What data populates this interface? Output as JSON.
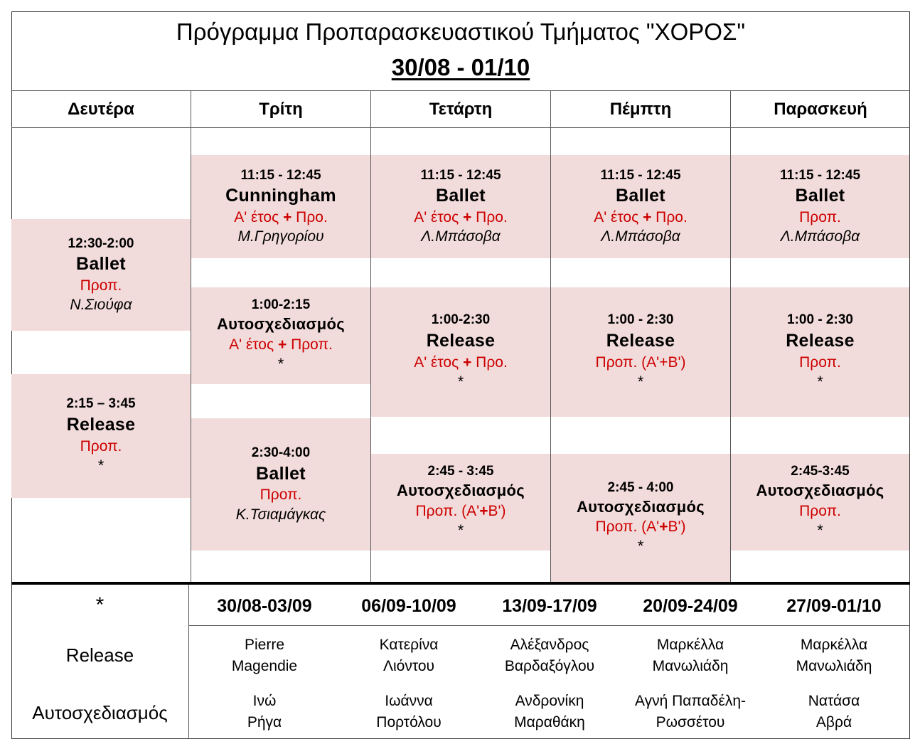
{
  "title": {
    "line1": "Πρόγραμμα Προπαρασκευαστικού Τμήματος \"ΧΟΡΟΣ\"",
    "line2": "30/08 - 01/10"
  },
  "days": [
    "Δευτέρα",
    "Τρίτη",
    "Τετάρτη",
    "Πέμπτη",
    "Παρασκευή"
  ],
  "schedule": {
    "mon": [
      {
        "time": "12:30-2:00",
        "course": "Ballet",
        "level": "Προπ.",
        "teacher": "Ν.Σιούφα"
      },
      {
        "time": "2:15 – 3:45",
        "course": "Release",
        "level": "Προπ.",
        "star": "*"
      }
    ],
    "tue": [
      {
        "time": "11:15 - 12:45",
        "course": "Cunningham",
        "level_a": "Α' έτος",
        "plus": "+",
        "level_b": "Προ.",
        "teacher": "Μ.Γρηγορίου"
      },
      {
        "time": "1:00-2:15",
        "course": "Αυτοσχεδιασμός",
        "level_a": "Α' έτος",
        "plus": "+",
        "level_b": "Προπ.",
        "star": "*"
      },
      {
        "time": "2:30-4:00",
        "course": "Ballet",
        "level": "Προπ.",
        "teacher": "Κ.Τσιαμάγκας"
      }
    ],
    "wed": [
      {
        "time": "11:15 - 12:45",
        "course": "Ballet",
        "level_a": "Α' έτος",
        "plus": "+",
        "level_b": "Προ.",
        "teacher": "Λ.Μπάσοβα"
      },
      {
        "time": "1:00-2:30",
        "course": "Release",
        "level_a": "Α' έτος",
        "plus": "+",
        "level_b": "Προ.",
        "star": "*"
      },
      {
        "time": "2:45 - 3:45",
        "course": "Αυτοσχεδιασμός",
        "level_a": "Προπ. (Α'",
        "plus": "+",
        "level_b": "Β')",
        "star": "*"
      }
    ],
    "thu": [
      {
        "time": "11:15 - 12:45",
        "course": "Ballet",
        "level_a": "Α' έτος",
        "plus": "+",
        "level_b": "Προ.",
        "teacher": "Λ.Μπάσοβα"
      },
      {
        "time": "1:00 - 2:30",
        "course": "Release",
        "level": "Προπ. (Α'+Β')",
        "star": "*"
      },
      {
        "time": "2:45 - 4:00",
        "course": "Αυτοσχεδιασμός",
        "level_a": "Προπ. (Α'",
        "plus": "+",
        "level_b": "Β')",
        "star": "*"
      }
    ],
    "fri": [
      {
        "time": "11:15 - 12:45",
        "course": "Ballet",
        "level": "Προπ.",
        "teacher": "Λ.Μπάσοβα"
      },
      {
        "time": "1:00 - 2:30",
        "course": "Release",
        "level": "Προπ.",
        "star": "*"
      },
      {
        "time": "2:45-3:45",
        "course": "Αυτοσχεδιασμός",
        "level": "Προπ.",
        "star": "*"
      }
    ]
  },
  "bottom": {
    "star": "*",
    "weeks": [
      "30/08-03/09",
      "06/09-10/09",
      "13/09-17/09",
      "20/09-24/09",
      "27/09-01/10"
    ],
    "rows": [
      {
        "label": "Release",
        "names": [
          [
            "Pierre",
            "Magendie"
          ],
          [
            "Κατερίνα",
            "Λιόντου"
          ],
          [
            "Αλέξανδρος",
            "Βαρδαξόγλου"
          ],
          [
            "Μαρκέλλα",
            "Μανωλιάδη"
          ],
          [
            "Μαρκέλλα",
            "Μανωλιάδη"
          ]
        ]
      },
      {
        "label": "Αυτοσχεδιασμός",
        "names": [
          [
            "Ινώ",
            "Ρήγα"
          ],
          [
            "Ιωάννα",
            "Πορτόλου"
          ],
          [
            "Ανδρονίκη",
            "Μαραθάκη"
          ],
          [
            "Αγνή Παπαδέλη-",
            "Ρωσσέτου"
          ],
          [
            "Νατάσα",
            "Αβρά"
          ]
        ]
      }
    ]
  },
  "colors": {
    "cell_bg": "#f2dcdb",
    "level_red": "#cc0000",
    "border": "#555555"
  }
}
